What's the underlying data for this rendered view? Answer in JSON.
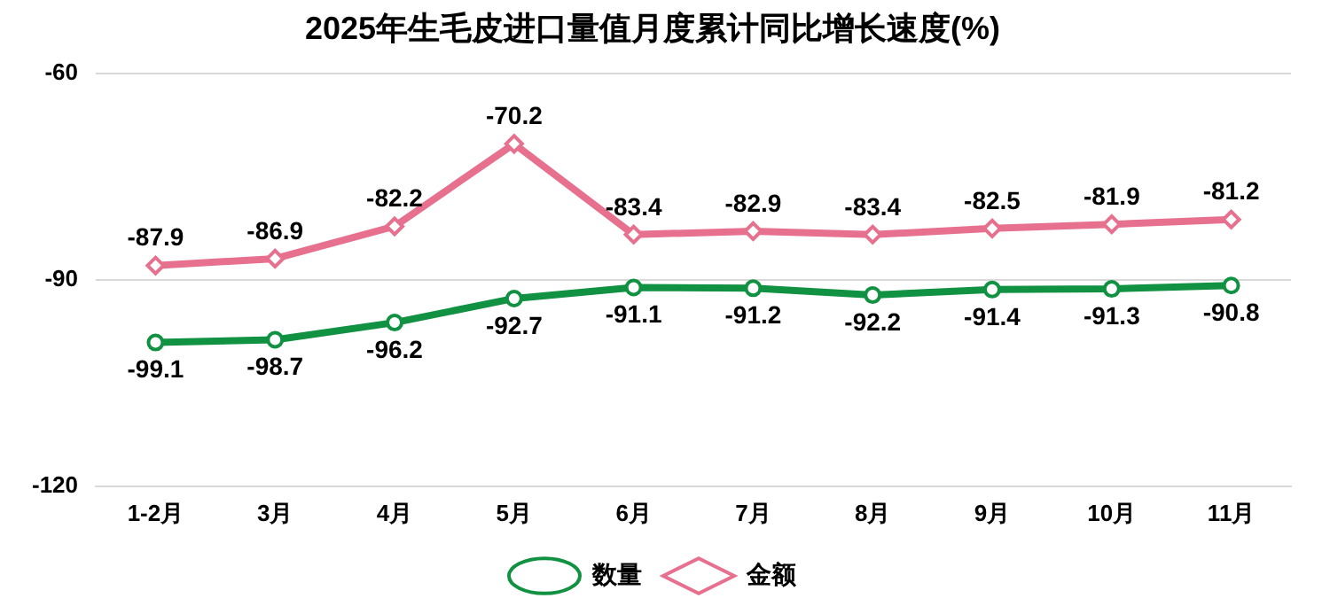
{
  "chart_data": {
    "type": "line",
    "title": "2025年生毛皮进口量值月度累计同比增长速度(%)",
    "categories": [
      "1-2月",
      "3月",
      "4月",
      "5月",
      "6月",
      "7月",
      "8月",
      "9月",
      "10月",
      "11月"
    ],
    "series": [
      {
        "name": "数量",
        "color": "#119142",
        "marker": "circle",
        "values": [
          -99.1,
          -98.7,
          -96.2,
          -92.7,
          -91.1,
          -91.2,
          -92.2,
          -91.4,
          -91.3,
          -90.8
        ]
      },
      {
        "name": "金额",
        "color": "#e7708f",
        "marker": "diamond",
        "values": [
          -87.9,
          -86.9,
          -82.2,
          -70.2,
          -83.4,
          -82.9,
          -83.4,
          -82.5,
          -81.9,
          -81.2
        ]
      }
    ],
    "ylim": [
      -120,
      -60
    ],
    "yticks": [
      -120,
      -90,
      -60
    ],
    "grid": "y",
    "legend": "bottom",
    "data_labels": true
  }
}
